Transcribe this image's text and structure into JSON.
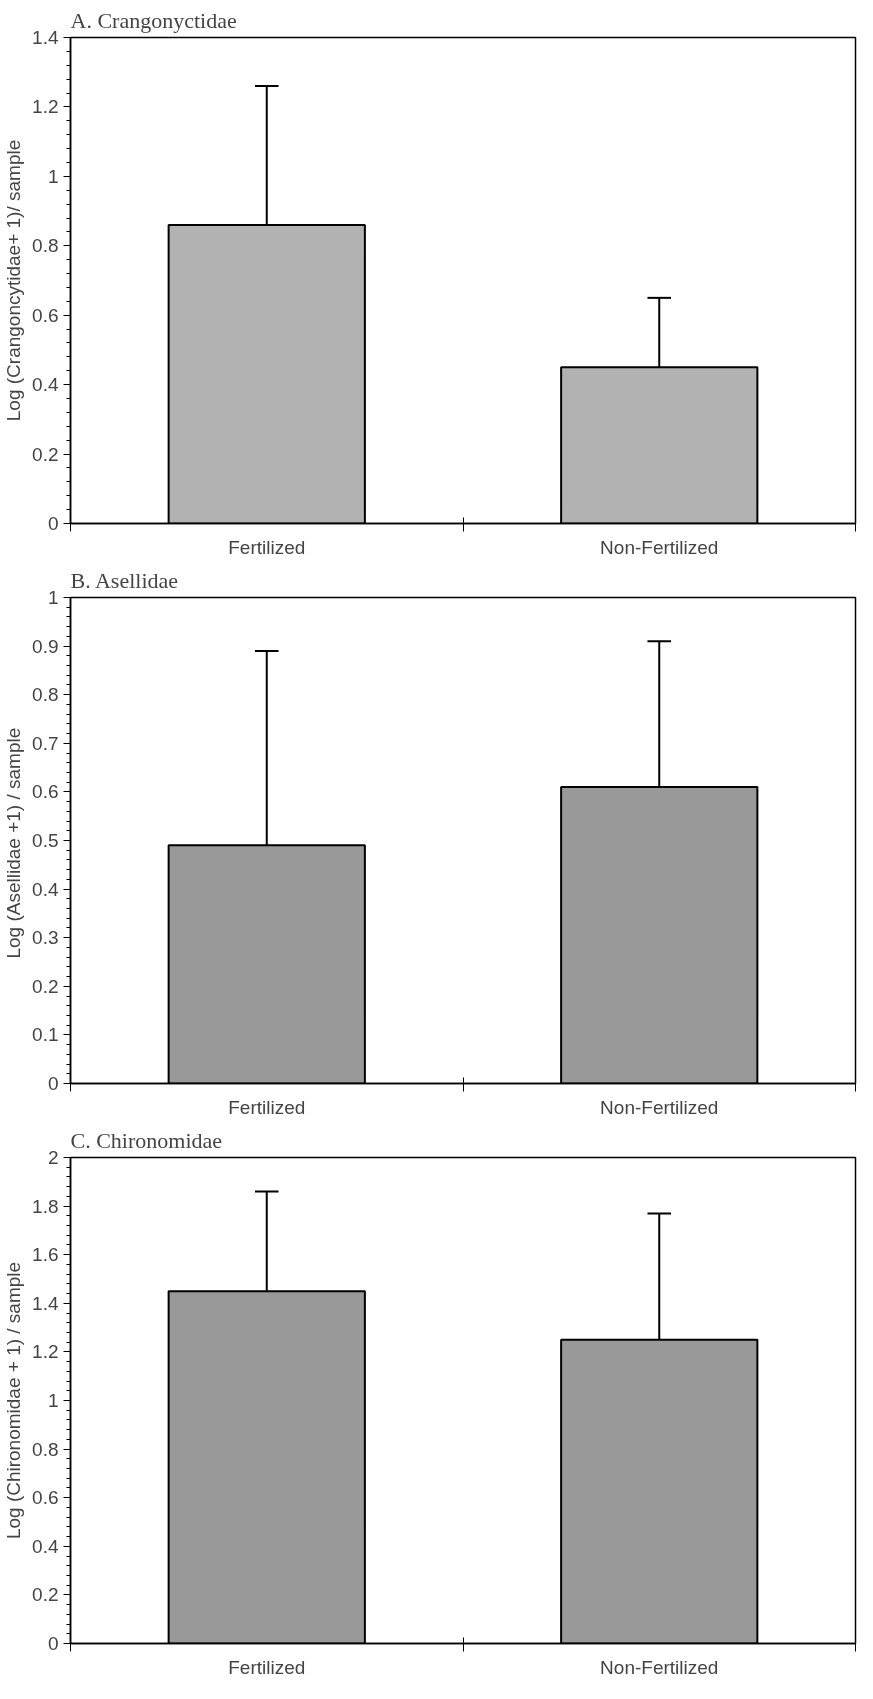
{
  "chart_data": [
    {
      "type": "bar",
      "title": "A. Crangonyctidae",
      "ylabel": "Log (Crangoncytidae+ 1)/ sample",
      "categories": [
        "Fertilized",
        "Non-Fertilized"
      ],
      "values": [
        0.86,
        0.45
      ],
      "errors": [
        [
          0.86,
          1.26
        ],
        [
          0.45,
          0.65
        ]
      ],
      "color": "#b2b2b2",
      "ylim": [
        0,
        1.4
      ],
      "yticks": [
        0,
        0.2,
        0.4,
        0.6,
        0.8,
        1,
        1.2,
        1.4
      ],
      "grid": false,
      "legend": false
    },
    {
      "type": "bar",
      "title": "B. Asellidae",
      "ylabel": "Log  (Asellidae +1) / sample",
      "categories": [
        "Fertilized",
        "Non-Fertilized"
      ],
      "values": [
        0.49,
        0.61
      ],
      "errors": [
        [
          0.49,
          0.89
        ],
        [
          0.61,
          0.91
        ]
      ],
      "color": "#999999",
      "ylim": [
        0,
        1
      ],
      "yticks": [
        0,
        0.1,
        0.2,
        0.3,
        0.4,
        0.5,
        0.6,
        0.7,
        0.8,
        0.9,
        1
      ],
      "grid": false,
      "legend": false
    },
    {
      "type": "bar",
      "title": "C. Chironomidae",
      "ylabel": "Log (Chironomidae + 1) / sample",
      "categories": [
        "Fertilized",
        "Non-Fertilized"
      ],
      "values": [
        1.45,
        1.25
      ],
      "errors": [
        [
          1.45,
          1.86
        ],
        [
          1.25,
          1.77
        ]
      ],
      "color": "#999999",
      "ylim": [
        0,
        2
      ],
      "yticks": [
        0,
        0.2,
        0.4,
        0.6,
        0.8,
        1,
        1.2,
        1.4,
        1.6,
        1.8,
        2
      ],
      "grid": false,
      "legend": false
    }
  ]
}
